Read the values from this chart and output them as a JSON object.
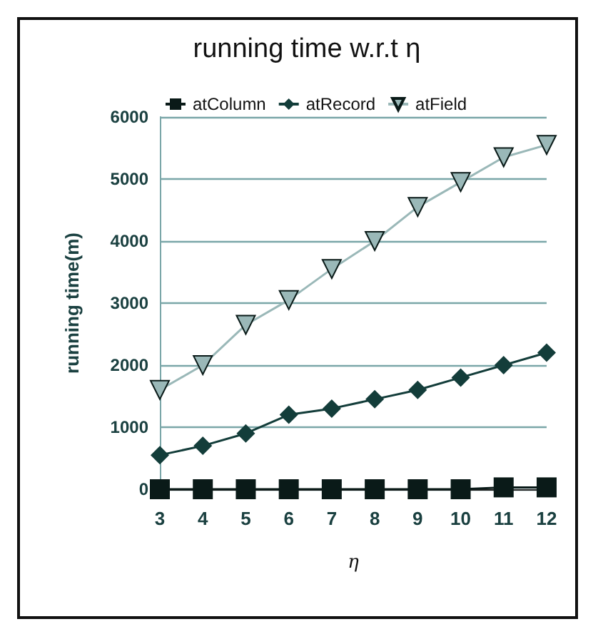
{
  "chart_data": {
    "type": "line",
    "title": "running time w.r.t η",
    "xlabel": "η",
    "ylabel": "running time(m)",
    "categories": [
      "3",
      "4",
      "5",
      "6",
      "7",
      "8",
      "9",
      "10",
      "11",
      "12"
    ],
    "series": [
      {
        "name": "atColumn",
        "color": "#0a1a18",
        "marker": "square",
        "values": [
          0,
          0,
          0,
          0,
          0,
          0,
          0,
          0,
          30,
          30
        ]
      },
      {
        "name": "atRecord",
        "color": "#133d3a",
        "marker": "diamond",
        "values": [
          550,
          700,
          900,
          1200,
          1300,
          1450,
          1600,
          1800,
          2000,
          2200
        ]
      },
      {
        "name": "atField",
        "color": "#9ab8b8",
        "marker": "triangle",
        "values": [
          1600,
          2000,
          2650,
          3050,
          3550,
          4000,
          4550,
          4950,
          5350,
          5550
        ]
      }
    ],
    "ylim": [
      0,
      6000
    ],
    "yticks": [
      0,
      1000,
      2000,
      3000,
      4000,
      5000,
      6000
    ],
    "grid": "y",
    "legend": "top left"
  }
}
